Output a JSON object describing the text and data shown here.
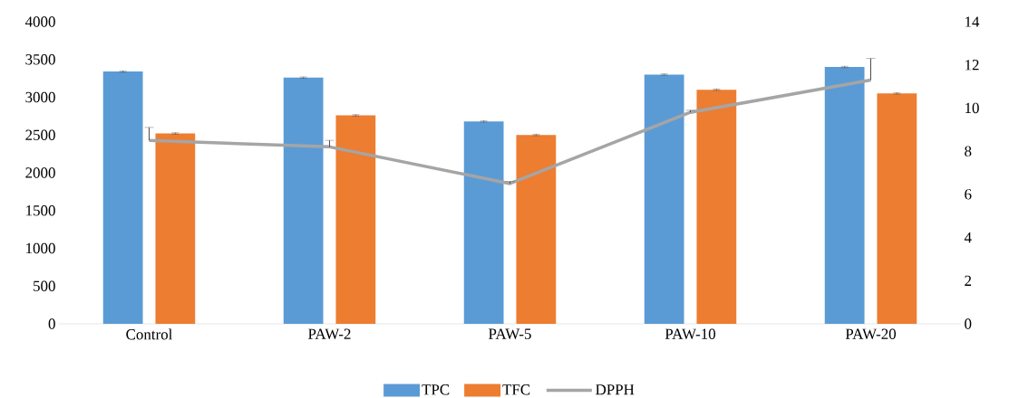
{
  "chart_data": {
    "type": "bar",
    "categories": [
      "Control",
      "PAW-2",
      "PAW-5",
      "PAW-10",
      "PAW-20"
    ],
    "series": [
      {
        "name": "TPC",
        "color": "#5b9bd5",
        "values": [
          3340,
          3260,
          2680,
          3300,
          3400
        ],
        "errors": [
          10,
          10,
          10,
          10,
          10
        ]
      },
      {
        "name": "TFC",
        "color": "#ed7d31",
        "values": [
          2520,
          2760,
          2500,
          3100,
          3050
        ],
        "errors": [
          10,
          10,
          10,
          10,
          10
        ]
      },
      {
        "name": "DPPH",
        "type": "line",
        "axis": "y2",
        "color": "#a5a5a5",
        "values": [
          8.5,
          8.2,
          6.5,
          9.8,
          11.3
        ],
        "errors": [
          0.6,
          0.3,
          0.1,
          0.1,
          1.0
        ]
      }
    ],
    "ylim": [
      0,
      4000
    ],
    "yticks": [
      0,
      500,
      1000,
      1500,
      2000,
      2500,
      3000,
      3500,
      4000
    ],
    "y2lim": [
      0,
      14
    ],
    "y2ticks": [
      0,
      2,
      4,
      6,
      8,
      10,
      12,
      14
    ],
    "legend": "bottom"
  }
}
